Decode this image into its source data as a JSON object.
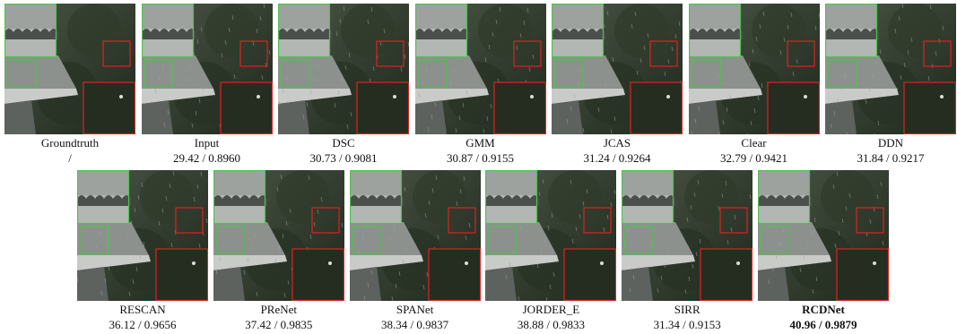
{
  "rows": [
    [
      {
        "name": "Groundtruth",
        "score": "/"
      },
      {
        "name": "Input",
        "score": "29.42 / 0.8960"
      },
      {
        "name": "DSC",
        "score": "30.73 / 0.9081"
      },
      {
        "name": "GMM",
        "score": "30.87 / 0.9155"
      },
      {
        "name": "JCAS",
        "score": "31.24 / 0.9264"
      },
      {
        "name": "Clear",
        "score": "32.79 / 0.9421"
      },
      {
        "name": "DDN",
        "score": "31.84 / 0.9217"
      }
    ],
    [
      {
        "name": "RESCAN",
        "score": "36.12 / 0.9656"
      },
      {
        "name": "PReNet",
        "score": "37.42 / 0.9835"
      },
      {
        "name": "SPANet",
        "score": "38.34 / 0.9837"
      },
      {
        "name": "JORDER_E",
        "score": "38.88 / 0.9833"
      },
      {
        "name": "SIRR",
        "score": "31.34 / 0.9153"
      },
      {
        "name": "RCDNet",
        "score": "40.96 / 0.9879",
        "bold": true
      }
    ]
  ]
}
